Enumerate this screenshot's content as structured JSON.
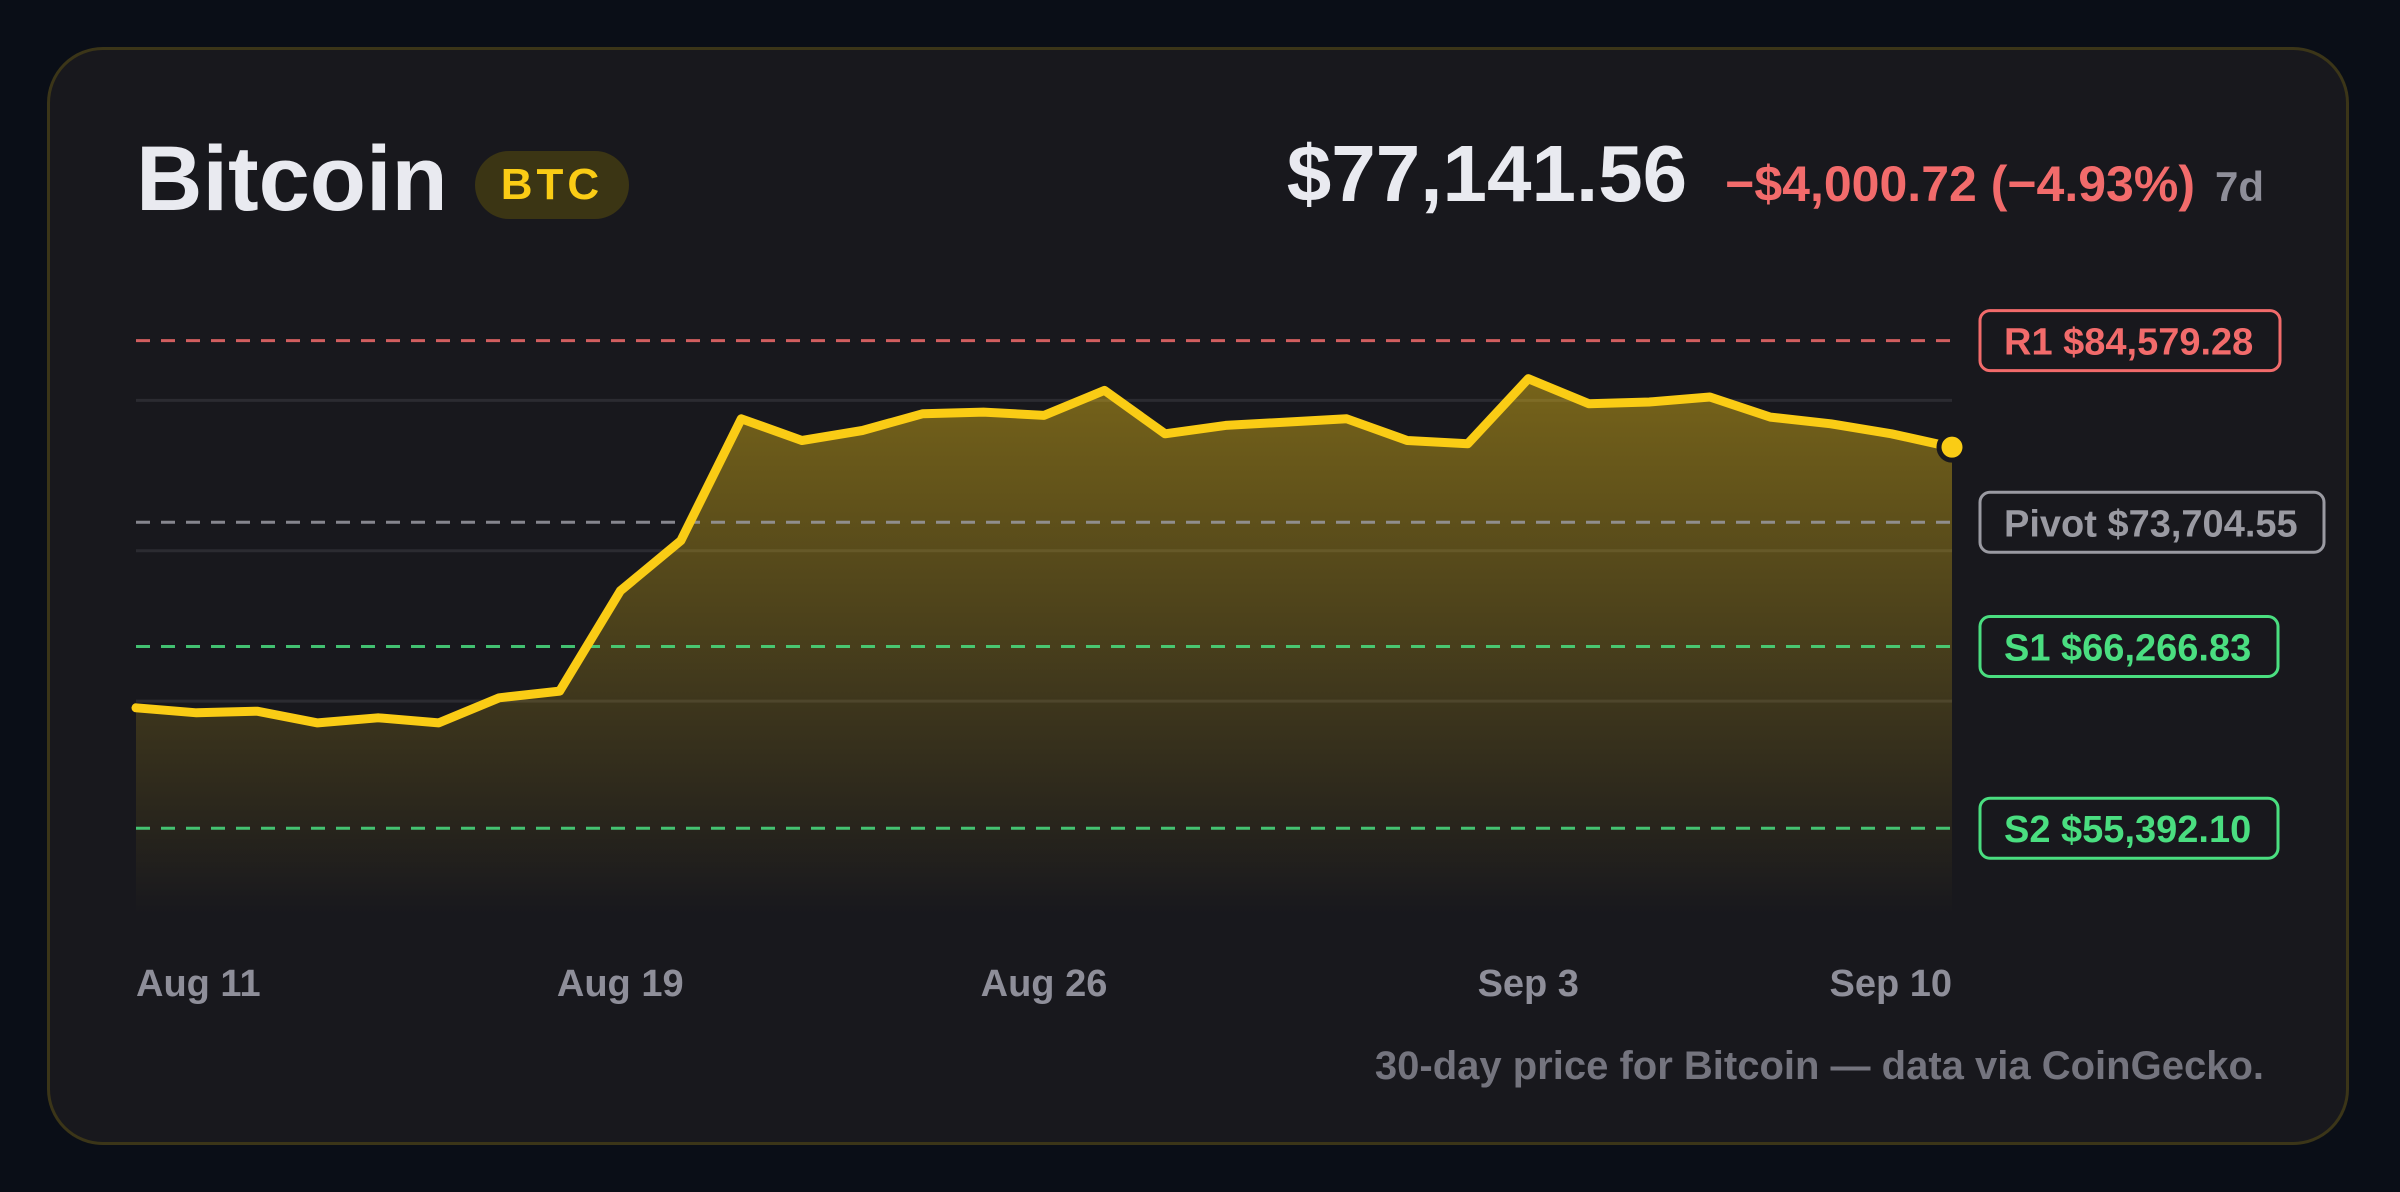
{
  "header": {
    "name": "Bitcoin",
    "ticker": "BTC",
    "price": "$77,141.56",
    "change": "−$4,000.72 (−4.93%)",
    "period": "7d"
  },
  "footer": {
    "caption": "30-day price for Bitcoin — data via CoinGecko."
  },
  "colors": {
    "background": "#0a0e17",
    "card": "#18181d",
    "line": "#facc15",
    "resistance": "#f26b6b",
    "pivot": "#9a9aa2",
    "support": "#4ade80"
  },
  "chart_data": {
    "type": "area",
    "title": "",
    "xlabel": "",
    "ylabel": "",
    "ylim": [
      50200,
      90000
    ],
    "x": [
      "Aug 11",
      "Aug 12",
      "Aug 13",
      "Aug 14",
      "Aug 15",
      "Aug 16",
      "Aug 17",
      "Aug 18",
      "Aug 19",
      "Aug 20",
      "Aug 21",
      "Aug 22",
      "Aug 23",
      "Aug 24",
      "Aug 25",
      "Aug 26",
      "Aug 27",
      "Aug 28",
      "Aug 29",
      "Aug 30",
      "Aug 31",
      "Sep 1",
      "Sep 2",
      "Sep 3",
      "Sep 4",
      "Sep 5",
      "Sep 6",
      "Sep 7",
      "Sep 8",
      "Sep 9",
      "Sep 10"
    ],
    "x_ticks": [
      "Aug 11",
      "Aug 19",
      "Aug 26",
      "Sep 3",
      "Sep 10"
    ],
    "series": [
      {
        "values": [
          62600,
          62300,
          62400,
          61700,
          62000,
          61700,
          63200,
          63600,
          69600,
          72600,
          79900,
          78600,
          79200,
          80200,
          80300,
          80100,
          81600,
          79000,
          79500,
          79700,
          79900,
          78600,
          78400,
          82300,
          80800,
          80900,
          81200,
          80000,
          79600,
          79000,
          78200
        ]
      }
    ],
    "levels": [
      {
        "label": "R1 $84,579.28",
        "value": 84579.28,
        "kind": "resistance"
      },
      {
        "label": "Pivot $73,704.55",
        "value": 73704.55,
        "kind": "pivot"
      },
      {
        "label": "S1 $66,266.83",
        "value": 66266.83,
        "kind": "support"
      },
      {
        "label": "S2 $55,392.10",
        "value": 55392.1,
        "kind": "support"
      }
    ],
    "gridlines": [
      81000,
      72000,
      63000
    ],
    "grid": true,
    "legend": "none"
  }
}
